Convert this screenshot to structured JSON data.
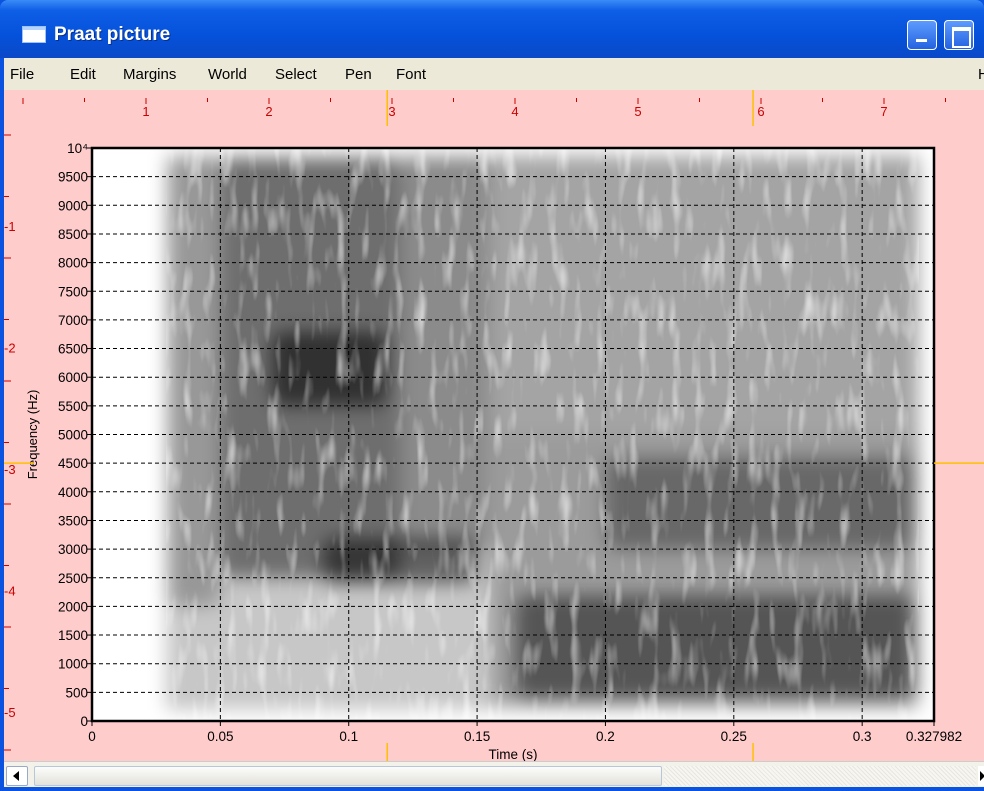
{
  "window": {
    "title": "Praat picture"
  },
  "menubar": {
    "items": [
      "File",
      "Edit",
      "Margins",
      "World",
      "Select",
      "Pen",
      "Font"
    ],
    "truncated_right": "H"
  },
  "ruler": {
    "top_labels": [
      "1",
      "2",
      "3",
      "4",
      "5",
      "6",
      "7"
    ],
    "left_labels": [
      "1",
      "2",
      "3",
      "4",
      "5"
    ],
    "left_signs": [
      "-",
      "-",
      "-",
      "-",
      "-"
    ]
  },
  "colors": {
    "canvas_background": "#ffcccc",
    "ruler_marks": "#cc0000",
    "selection_marker": "#ffc000",
    "titlebar": "#0552db"
  },
  "chart_data": {
    "type": "heatmap",
    "title": "",
    "xlabel": "Time (s)",
    "ylabel": "Frequency (Hz)",
    "xlim": [
      0,
      0.327982
    ],
    "ylim": [
      0,
      10000
    ],
    "x_ticks": [
      0,
      0.05,
      0.1,
      0.15,
      0.2,
      0.25,
      0.3,
      0.327982
    ],
    "x_tick_labels": [
      "0",
      "0.05",
      "0.1",
      "0.15",
      "0.2",
      "0.25",
      "0.3",
      "0.327982"
    ],
    "y_ticks": [
      0,
      500,
      1000,
      1500,
      2000,
      2500,
      3000,
      3500,
      4000,
      4500,
      5000,
      5500,
      6000,
      6500,
      7000,
      7500,
      8000,
      8500,
      9000,
      9500,
      10000
    ],
    "y_tick_labels": [
      "0",
      "500",
      "1000",
      "1500",
      "2000",
      "2500",
      "3000",
      "3500",
      "4000",
      "4500",
      "5000",
      "5500",
      "6000",
      "6500",
      "7000",
      "7500",
      "8000",
      "8500",
      "9000",
      "9500",
      "10⁴"
    ],
    "grid": true,
    "grid_style": "dashed",
    "signal_onset_s": 0.029,
    "signal_offset_s": 0.322,
    "regions": [
      {
        "t_start": 0.05,
        "t_end": 0.12,
        "f_low": 2500,
        "f_high": 9800,
        "intensity": 0.75
      },
      {
        "t_start": 0.07,
        "t_end": 0.115,
        "f_low": 5500,
        "f_high": 6800,
        "intensity": 0.92
      },
      {
        "t_start": 0.09,
        "t_end": 0.15,
        "f_low": 2400,
        "f_high": 3200,
        "intensity": 0.85
      },
      {
        "t_start": 0.03,
        "t_end": 0.05,
        "f_low": 2000,
        "f_high": 9800,
        "intensity": 0.4
      },
      {
        "t_start": 0.12,
        "t_end": 0.155,
        "f_low": 3000,
        "f_high": 9800,
        "intensity": 0.5
      },
      {
        "t_start": 0.155,
        "t_end": 0.322,
        "f_low": 300,
        "f_high": 9800,
        "intensity": 0.3
      },
      {
        "t_start": 0.165,
        "t_end": 0.32,
        "f_low": 400,
        "f_high": 2200,
        "intensity": 0.75
      },
      {
        "t_start": 0.2,
        "t_end": 0.32,
        "f_low": 3000,
        "f_high": 4600,
        "intensity": 0.55
      }
    ],
    "selection_cursor": {
      "time_s": 0.115,
      "frequency_hz": 4500
    }
  }
}
